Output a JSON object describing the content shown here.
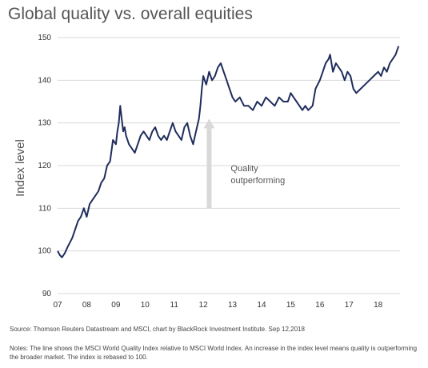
{
  "title": "Global quality vs. overall equities",
  "source": "Source: Thomson Reuters Datastream and MSCI, chart by BlackRock Investment Institute. Sep 12,2018",
  "notes": "Notes: The line shows the MSCI World Quality Index relative to MSCI World Index. An increase in the index level means quality is outperforming the broader market. The index is rebased to 100.",
  "colors": {
    "line": "#1f2d5c",
    "grid": "#d9d9d9",
    "arrow": "#d9d9d9"
  },
  "chart_data": {
    "type": "line",
    "title": "Global quality vs. overall equities",
    "xlabel": "",
    "ylabel": "Index level",
    "xlim": [
      2007,
      2018.75
    ],
    "ylim": [
      90,
      150
    ],
    "yticks": [
      90,
      100,
      110,
      120,
      130,
      140,
      150
    ],
    "xticks": [
      {
        "v": 2007,
        "label": "07"
      },
      {
        "v": 2008,
        "label": "08"
      },
      {
        "v": 2009,
        "label": "09"
      },
      {
        "v": 2010,
        "label": "10"
      },
      {
        "v": 2011,
        "label": "11"
      },
      {
        "v": 2012,
        "label": "12"
      },
      {
        "v": 2013,
        "label": "13"
      },
      {
        "v": 2014,
        "label": "14"
      },
      {
        "v": 2015,
        "label": "15"
      },
      {
        "v": 2016,
        "label": "16"
      },
      {
        "v": 2017,
        "label": "17"
      },
      {
        "v": 2018,
        "label": "18"
      }
    ],
    "grid": true,
    "legend": "none",
    "annotation": {
      "line1": "Quality",
      "line2": "outperforming",
      "x": 2012.2,
      "y_from": 110,
      "y_to": 131
    },
    "series": [
      {
        "x": [
          2007.0,
          2007.08,
          2007.15,
          2007.25,
          2007.35,
          2007.5,
          2007.6,
          2007.7,
          2007.8,
          2007.9,
          2008.0,
          2008.1,
          2008.2,
          2008.3,
          2008.4,
          2008.5,
          2008.6,
          2008.7,
          2008.8,
          2008.9,
          2009.0,
          2009.05,
          2009.1,
          2009.15,
          2009.2,
          2009.25,
          2009.3,
          2009.35,
          2009.45,
          2009.55,
          2009.65,
          2009.75,
          2009.85,
          2009.95,
          2010.05,
          2010.15,
          2010.25,
          2010.35,
          2010.45,
          2010.55,
          2010.65,
          2010.75,
          2010.85,
          2010.95,
          2011.05,
          2011.15,
          2011.25,
          2011.35,
          2011.45,
          2011.55,
          2011.65,
          2011.75,
          2011.85,
          2011.9,
          2011.95,
          2012.0,
          2012.05,
          2012.1,
          2012.2,
          2012.3,
          2012.4,
          2012.5,
          2012.6,
          2012.7,
          2012.8,
          2012.9,
          2013.0,
          2013.1,
          2013.25,
          2013.4,
          2013.55,
          2013.7,
          2013.85,
          2014.0,
          2014.15,
          2014.3,
          2014.45,
          2014.6,
          2014.75,
          2014.9,
          2015.0,
          2015.1,
          2015.2,
          2015.3,
          2015.4,
          2015.5,
          2015.6,
          2015.75,
          2015.85,
          2016.0,
          2016.1,
          2016.2,
          2016.3,
          2016.35,
          2016.45,
          2016.55,
          2016.65,
          2016.75,
          2016.85,
          2016.95,
          2017.05,
          2017.15,
          2017.25,
          2017.4,
          2017.55,
          2017.7,
          2017.85,
          2018.0,
          2018.1,
          2018.2,
          2018.3,
          2018.4,
          2018.5,
          2018.6,
          2018.7
        ],
        "values": [
          100,
          99,
          98.5,
          99.5,
          101,
          103,
          105,
          107,
          108,
          110,
          108,
          111,
          112,
          113,
          114,
          116,
          117,
          120,
          121,
          126,
          125,
          128,
          130,
          134,
          131,
          128,
          129,
          127,
          125,
          124,
          123,
          125,
          127,
          128,
          127,
          126,
          128,
          129,
          127,
          126,
          127,
          126,
          128,
          130,
          128,
          127,
          126,
          129,
          130,
          127,
          125,
          128,
          131,
          134,
          138,
          141,
          140,
          139,
          142,
          140,
          141,
          143,
          144,
          142,
          140,
          138,
          136,
          135,
          136,
          134,
          134,
          133,
          135,
          134,
          136,
          135,
          134,
          136,
          135,
          135,
          137,
          136,
          135,
          134,
          133,
          134,
          133,
          134,
          138,
          140,
          142,
          144,
          145,
          146,
          142,
          144,
          143,
          142,
          140,
          142,
          141,
          138,
          137,
          138,
          139,
          140,
          141,
          142,
          141,
          143,
          142,
          144,
          145,
          146,
          148
        ]
      }
    ]
  }
}
